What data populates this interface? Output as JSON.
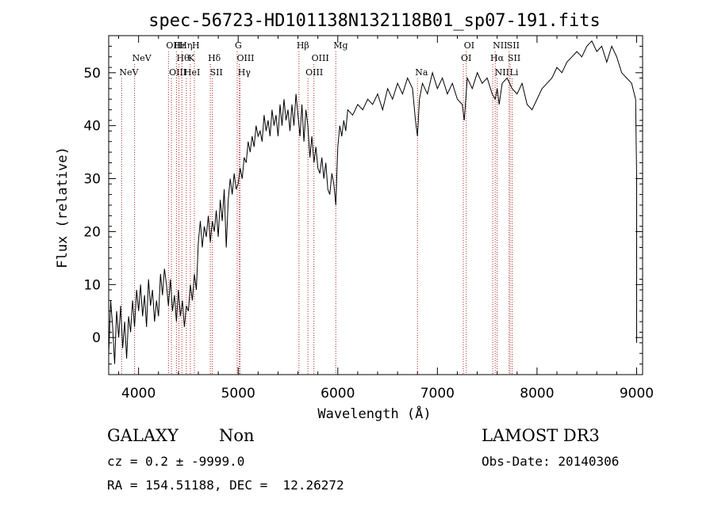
{
  "chart_data": {
    "type": "line",
    "title": "spec-56723-HD101138N132118B01_sp07-191.fits",
    "xlabel": "Wavelength (Å)",
    "ylabel": "Flux (relative)",
    "xlim": [
      3700,
      9060
    ],
    "ylim": [
      -7,
      57
    ],
    "xticks": [
      4000,
      5000,
      6000,
      7000,
      8000,
      9000
    ],
    "yticks": [
      0,
      10,
      20,
      30,
      40,
      50
    ],
    "line_color": "#000000",
    "marker_color": "#b22222",
    "spectrum": {
      "x": [
        3700,
        3720,
        3740,
        3760,
        3780,
        3800,
        3820,
        3840,
        3860,
        3880,
        3900,
        3920,
        3940,
        3960,
        3980,
        4000,
        4020,
        4040,
        4060,
        4080,
        4100,
        4120,
        4140,
        4160,
        4180,
        4200,
        4220,
        4240,
        4260,
        4280,
        4300,
        4320,
        4340,
        4360,
        4380,
        4400,
        4420,
        4440,
        4460,
        4480,
        4500,
        4520,
        4540,
        4560,
        4580,
        4600,
        4620,
        4640,
        4660,
        4680,
        4700,
        4720,
        4740,
        4760,
        4780,
        4800,
        4820,
        4840,
        4860,
        4880,
        4900,
        4920,
        4940,
        4960,
        4980,
        5000,
        5020,
        5040,
        5060,
        5080,
        5100,
        5120,
        5140,
        5160,
        5180,
        5200,
        5220,
        5240,
        5260,
        5280,
        5300,
        5320,
        5340,
        5360,
        5380,
        5400,
        5420,
        5440,
        5460,
        5480,
        5500,
        5520,
        5540,
        5560,
        5580,
        5600,
        5620,
        5640,
        5660,
        5680,
        5700,
        5720,
        5740,
        5760,
        5780,
        5800,
        5820,
        5840,
        5860,
        5880,
        5900,
        5920,
        5940,
        5960,
        5980,
        6000,
        6020,
        6040,
        6060,
        6080,
        6100,
        6150,
        6200,
        6250,
        6300,
        6350,
        6400,
        6450,
        6500,
        6550,
        6600,
        6650,
        6700,
        6750,
        6780,
        6800,
        6820,
        6850,
        6900,
        6950,
        7000,
        7050,
        7100,
        7150,
        7200,
        7250,
        7270,
        7300,
        7350,
        7400,
        7450,
        7500,
        7550,
        7580,
        7600,
        7620,
        7650,
        7700,
        7750,
        7800,
        7850,
        7900,
        7950,
        8000,
        8050,
        8100,
        8150,
        8200,
        8250,
        8300,
        8350,
        8400,
        8450,
        8500,
        8550,
        8600,
        8650,
        8700,
        8750,
        8800,
        8850,
        8900,
        8950,
        8990,
        9000,
        9000
      ],
      "y": [
        -3,
        7,
        2,
        -5,
        5,
        0,
        6,
        -2,
        3,
        -4,
        4,
        1,
        7,
        2,
        9,
        5,
        10,
        4,
        8,
        2,
        11,
        6,
        9,
        3,
        7,
        4,
        12,
        8,
        13,
        10,
        6,
        11,
        5,
        8,
        3,
        9,
        4,
        7,
        2,
        6,
        5,
        10,
        7,
        12,
        9,
        18,
        22,
        17,
        21,
        19,
        23,
        18,
        22,
        20,
        24,
        19,
        26,
        22,
        28,
        17,
        26,
        30,
        27,
        31,
        28,
        29,
        32,
        30,
        34,
        33,
        37,
        35,
        38,
        36,
        40,
        38,
        39,
        37,
        42,
        39,
        41,
        38,
        43,
        40,
        42,
        38,
        44,
        40,
        45,
        41,
        43,
        39,
        44,
        40,
        46,
        42,
        38,
        44,
        37,
        43,
        40,
        34,
        38,
        33,
        36,
        32,
        31,
        34,
        30,
        33,
        28,
        27,
        31,
        29,
        25,
        36,
        40,
        38,
        41,
        39,
        43,
        42,
        44,
        43,
        45,
        44,
        46,
        43,
        47,
        45,
        48,
        46,
        49,
        47,
        41,
        38,
        45,
        48,
        46,
        50,
        47,
        49,
        46,
        48,
        45,
        44,
        41,
        49,
        47,
        50,
        48,
        49,
        46,
        45,
        47,
        44,
        48,
        49,
        47,
        46,
        48,
        44,
        43,
        45,
        47,
        48,
        49,
        51,
        50,
        52,
        53,
        54,
        53,
        55,
        56,
        54,
        55,
        52,
        55,
        53,
        50,
        49,
        48,
        45,
        30,
        -1
      ]
    },
    "lines": [
      {
        "label": "NeV",
        "x": 3830,
        "row": 3
      },
      {
        "label": "NeV",
        "x": 3960,
        "row": 2
      },
      {
        "label": "OII",
        "x": 4300,
        "row": 1
      },
      {
        "label": "OIII",
        "x": 4330,
        "row": 3
      },
      {
        "label": "Hε",
        "x": 4380,
        "row": 1
      },
      {
        "label": "Hθ",
        "x": 4405,
        "row": 2
      },
      {
        "label": "Hη",
        "x": 4435,
        "row": 1
      },
      {
        "label": "HeI",
        "x": 4480,
        "row": 3
      },
      {
        "label": "K",
        "x": 4520,
        "row": 2
      },
      {
        "label": "H",
        "x": 4560,
        "row": 1
      },
      {
        "label": "Hδ",
        "x": 4720,
        "row": 2
      },
      {
        "label": "SII",
        "x": 4740,
        "row": 3
      },
      {
        "label": "G",
        "x": 4990,
        "row": 1
      },
      {
        "label": "OIII",
        "x": 5010,
        "row": 2
      },
      {
        "label": "Hγ",
        "x": 5020,
        "row": 3
      },
      {
        "label": "Hβ",
        "x": 5610,
        "row": 1
      },
      {
        "label": "OIII",
        "x": 5760,
        "row": 2
      },
      {
        "label": "OIII",
        "x": 5700,
        "row": 3
      },
      {
        "label": "Mg",
        "x": 5980,
        "row": 1
      },
      {
        "label": "Na",
        "x": 6800,
        "row": 3
      },
      {
        "label": "OI",
        "x": 7290,
        "row": 1
      },
      {
        "label": "OI",
        "x": 7260,
        "row": 2
      },
      {
        "label": "NII",
        "x": 7580,
        "row": 1
      },
      {
        "label": "Hα",
        "x": 7555,
        "row": 2
      },
      {
        "label": "NII",
        "x": 7600,
        "row": 3
      },
      {
        "label": "SII",
        "x": 7720,
        "row": 1
      },
      {
        "label": "SII",
        "x": 7730,
        "row": 2
      },
      {
        "label": "Li",
        "x": 7750,
        "row": 3
      }
    ]
  },
  "info": {
    "class": "GALAXY",
    "subclass": "Non",
    "survey": "LAMOST DR3",
    "cz": "cz = 0.2 ± -9999.0",
    "obs_date": "Obs-Date: 20140306",
    "radec": "RA = 154.51188, DEC =  12.26272"
  }
}
